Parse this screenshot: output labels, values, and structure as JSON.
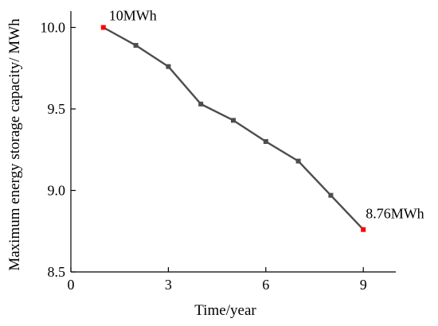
{
  "chart_data": {
    "type": "line",
    "title": "",
    "xlabel": "Time/year",
    "ylabel": "Maximum energy storage  capacity/ MWh",
    "xlim": [
      0,
      10
    ],
    "ylim": [
      8.5,
      10.1
    ],
    "xticks": [
      0,
      3,
      6,
      9
    ],
    "yticks": [
      8.5,
      9.0,
      9.5,
      10.0
    ],
    "xtick_labels": [
      "0",
      "3",
      "6",
      "9"
    ],
    "ytick_labels": [
      "8.5",
      "9.0",
      "9.5",
      "10.0"
    ],
    "grid": false,
    "series": [
      {
        "x": [
          1,
          2,
          3,
          4,
          5,
          6,
          7,
          8,
          9
        ],
        "y": [
          10.0,
          9.89,
          9.76,
          9.53,
          9.43,
          9.3,
          9.18,
          8.97,
          8.76
        ],
        "color": "#4d4d4d",
        "marker_color": "#4d4d4d"
      }
    ],
    "highlight_color": "#ff0000",
    "annotations": [
      {
        "text": "10MWh",
        "x": 1,
        "y": 10.0
      },
      {
        "text": "8.76MWh",
        "x": 9,
        "y": 8.76
      }
    ]
  }
}
